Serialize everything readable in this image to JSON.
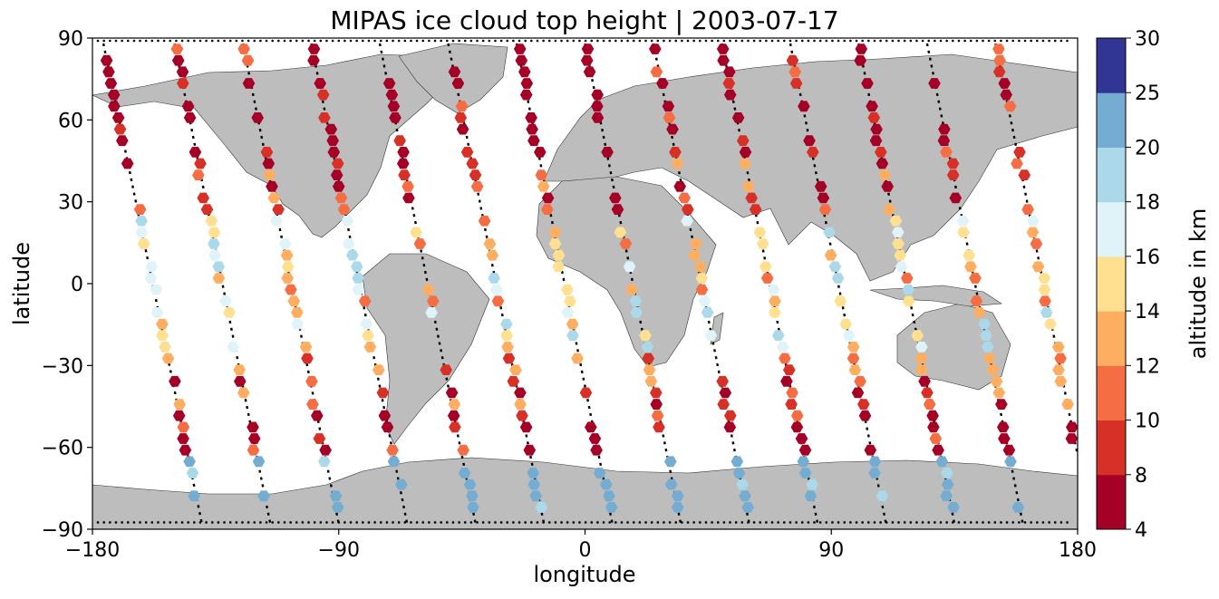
{
  "chart_data": {
    "type": "scatter",
    "title": "MIPAS ice cloud top height | 2003-07-17",
    "xlabel": "longitude",
    "ylabel": "latitude",
    "xlim": [
      -180,
      180
    ],
    "ylim": [
      -90,
      90
    ],
    "xticks": [
      "−180",
      "−90",
      "0",
      "90",
      "180"
    ],
    "yticks": [
      "−90",
      "−60",
      "−30",
      "0",
      "30",
      "60",
      "90"
    ],
    "colorbar": {
      "label": "altitude in km",
      "boundaries": [
        4,
        8,
        10,
        12,
        14,
        16,
        18,
        20,
        25,
        30
      ],
      "tick_labels": [
        "4",
        "8",
        "10",
        "12",
        "14",
        "16",
        "18",
        "20",
        "25",
        "30"
      ],
      "colors": [
        "#a50026",
        "#d73027",
        "#f46d43",
        "#fdae61",
        "#fee090",
        "#e0f3f8",
        "#abd9e9",
        "#74add1",
        "#313695"
      ]
    },
    "marker": "hexagon",
    "land_color": "#bdbdbd",
    "ocean_color": "#ffffff",
    "orbit_track_color": "#000000",
    "orbit_tracks": [
      {
        "lon0": -176,
        "lon1": -140
      },
      {
        "lon0": -150,
        "lon1": -115
      },
      {
        "lon0": -125,
        "lon1": -90
      },
      {
        "lon0": -100,
        "lon1": -65
      },
      {
        "lon0": -75,
        "lon1": -40
      },
      {
        "lon0": -50,
        "lon1": -15
      },
      {
        "lon0": -25,
        "lon1": 10
      },
      {
        "lon0": 0,
        "lon1": 35
      },
      {
        "lon0": 25,
        "lon1": 60
      },
      {
        "lon0": 50,
        "lon1": 85
      },
      {
        "lon0": 75,
        "lon1": 110
      },
      {
        "lon0": 100,
        "lon1": 135
      },
      {
        "lon0": 125,
        "lon1": 160
      },
      {
        "lon0": 150,
        "lon1": 185
      }
    ]
  }
}
